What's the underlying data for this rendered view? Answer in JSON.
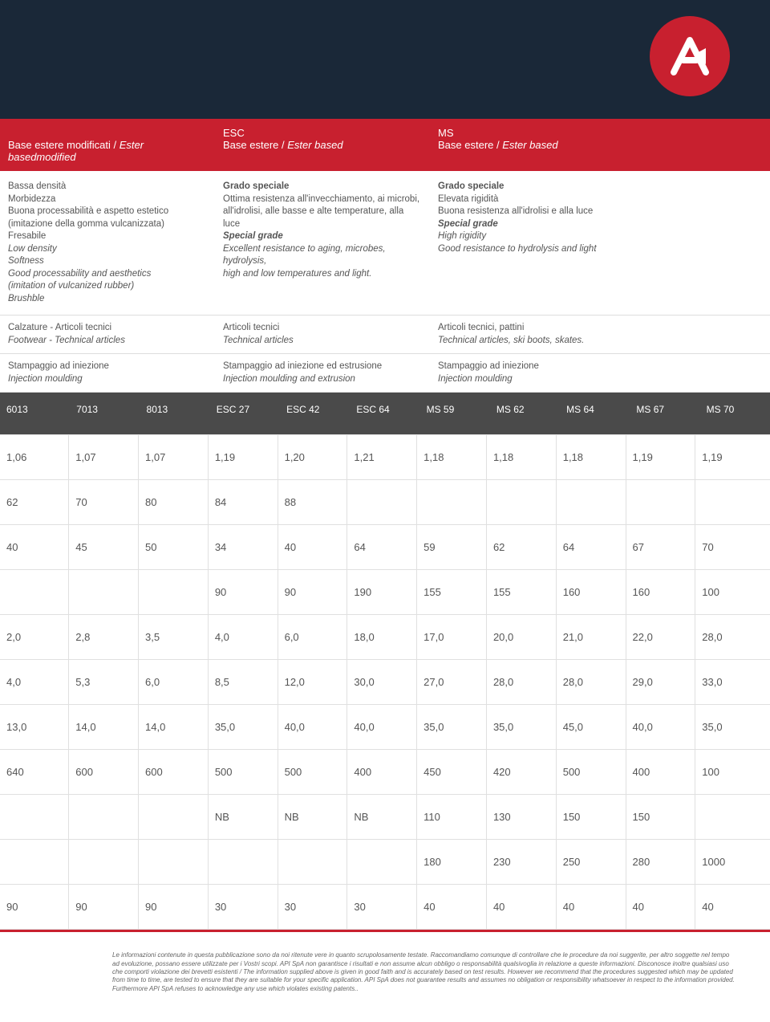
{
  "logo": {
    "bg": "#c8202f",
    "fg": "#ffffff"
  },
  "red_band": {
    "col0": {
      "label": "Base estere modificati / ",
      "italic": "Ester basedmodified"
    },
    "col1": {
      "top": "ESC",
      "label": "Base estere / ",
      "italic": "Ester based"
    },
    "col2": {
      "top": "MS",
      "label": "Base estere / ",
      "italic": "Ester based"
    }
  },
  "desc": {
    "col0": {
      "lines": [
        "Bassa densità",
        "Morbidezza",
        "Buona processabilità e aspetto estetico",
        "(imitazione della gomma vulcanizzata)",
        "Fresabile"
      ],
      "italic_lines": [
        "Low density",
        "Softness",
        "Good processability and aesthetics",
        "(imitation of vulcanized rubber)",
        "Brushble"
      ]
    },
    "col1": {
      "bold": "Grado speciale",
      "lines": [
        "Ottima resistenza all'invecchiamento, ai microbi,",
        "all'idrolisi, alle basse e alte temperature, alla luce"
      ],
      "bold_italic": "Special grade",
      "italic_lines": [
        "Excellent resistance to aging, microbes, hydrolysis,",
        "high and low temperatures and light."
      ]
    },
    "col2": {
      "bold": "Grado speciale",
      "lines": [
        "Elevata rigidità",
        "Buona resistenza all'idrolisi e alla luce"
      ],
      "bold_italic": "Special grade",
      "italic_lines": [
        "High rigidity",
        "Good resistance to hydrolysis and light"
      ]
    }
  },
  "desc_row2": {
    "col0": {
      "line": "Calzature - Articoli tecnici",
      "italic": "Footwear - Technical articles"
    },
    "col1": {
      "line": "Articoli tecnici",
      "italic": "Technical articles"
    },
    "col2": {
      "line": "Articoli tecnici, pattini",
      "italic": "Technical articles, ski boots, skates."
    }
  },
  "desc_row3": {
    "col0": {
      "line": "Stampaggio ad iniezione",
      "italic": "Injection moulding"
    },
    "col1": {
      "line": "Stampaggio ad iniezione ed estrusione",
      "italic": "Injection moulding and extrusion"
    },
    "col2": {
      "line": "Stampaggio ad iniezione",
      "italic": "Injection moulding"
    }
  },
  "gray_headers": [
    "6013",
    "7013",
    "8013",
    "ESC 27",
    "ESC 42",
    "ESC 64",
    "MS 59",
    "MS 62",
    "MS 64",
    "MS 67",
    "MS 70"
  ],
  "data_rows": [
    [
      "1,06",
      "1,07",
      "1,07",
      "1,19",
      "1,20",
      "1,21",
      "1,18",
      "1,18",
      "1,18",
      "1,19",
      "1,19"
    ],
    [
      "62",
      "70",
      "80",
      "84",
      "88",
      "",
      "",
      "",
      "",
      "",
      ""
    ],
    [
      "40",
      "45",
      "50",
      "34",
      "40",
      "64",
      "59",
      "62",
      "64",
      "67",
      "70"
    ],
    [
      "",
      "",
      "",
      "90",
      "90",
      "190",
      "155",
      "155",
      "160",
      "160",
      "100"
    ],
    [
      "2,0",
      "2,8",
      "3,5",
      "4,0",
      "6,0",
      "18,0",
      "17,0",
      "20,0",
      "21,0",
      "22,0",
      "28,0"
    ],
    [
      "4,0",
      "5,3",
      "6,0",
      "8,5",
      "12,0",
      "30,0",
      "27,0",
      "28,0",
      "28,0",
      "29,0",
      "33,0"
    ],
    [
      "13,0",
      "14,0",
      "14,0",
      "35,0",
      "40,0",
      "40,0",
      "35,0",
      "35,0",
      "45,0",
      "40,0",
      "35,0"
    ],
    [
      "640",
      "600",
      "600",
      "500",
      "500",
      "400",
      "450",
      "420",
      "500",
      "400",
      "100"
    ],
    [
      "",
      "",
      "",
      "NB",
      "NB",
      "NB",
      "110",
      "130",
      "150",
      "150",
      ""
    ],
    [
      "",
      "",
      "",
      "",
      "",
      "",
      "180",
      "230",
      "250",
      "280",
      "1000"
    ],
    [
      "90",
      "90",
      "90",
      "30",
      "30",
      "30",
      "40",
      "40",
      "40",
      "40",
      "40"
    ]
  ],
  "footer": "Le informazioni contenute in questa pubblicazione sono da noi ritenute vere in quanto scrupolosamente testate. Raccomandiamo comunque di controllare che le procedure da noi suggerite, per altro soggette nel tempo ad evoluzione, possano essere utilizzate per i Vostri scopi. API SpA non garantisce i risultati e non assume alcun obbligo o responsabilità qualsivoglia in relazione a queste informazioni. Disconosce inoltre qualsiasi uso che comporti violazione dei brevetti esistenti / The information supplied above is given in good faith and is accurately based on test results. However we recommend that the procedures suggested which may be updated from time to time, are tested to ensure that they are suitable for your specific application. API SpA does not guarantee results and assumes no obligation or responsibility whatsoever in respect to the information provided. Furthermore API SpA refuses to acknowledge any use which violates existing patents.."
}
